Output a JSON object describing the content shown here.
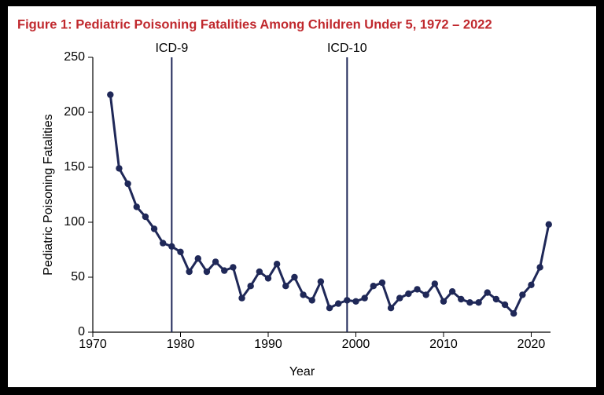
{
  "chart_data": {
    "type": "line",
    "title": "Figure 1: Pediatric Poisoning Fatalities Among Children Under 5, 1972 – 2022",
    "x_label": "Year",
    "y_label": "Pediatric Poisoning Fatalities",
    "x": [
      1972,
      1973,
      1974,
      1975,
      1976,
      1977,
      1978,
      1979,
      1980,
      1981,
      1982,
      1983,
      1984,
      1985,
      1986,
      1987,
      1988,
      1989,
      1990,
      1991,
      1992,
      1993,
      1994,
      1995,
      1996,
      1997,
      1998,
      1999,
      2000,
      2001,
      2002,
      2003,
      2004,
      2005,
      2006,
      2007,
      2008,
      2009,
      2010,
      2011,
      2012,
      2013,
      2014,
      2015,
      2016,
      2017,
      2018,
      2019,
      2020,
      2021,
      2022
    ],
    "values": [
      216,
      149,
      135,
      114,
      105,
      94,
      81,
      78,
      73,
      55,
      67,
      55,
      64,
      56,
      59,
      31,
      42,
      55,
      49,
      62,
      42,
      50,
      34,
      29,
      46,
      22,
      26,
      29,
      28,
      31,
      42,
      45,
      22,
      31,
      35,
      39,
      34,
      44,
      28,
      37,
      30,
      27,
      27,
      36,
      30,
      25,
      17,
      34,
      43,
      59,
      98
    ],
    "color": "#1f2858",
    "xlim": [
      1970,
      2022.2
    ],
    "xticks": [
      1970,
      1980,
      1990,
      2000,
      2010,
      2020
    ],
    "ylim": [
      0,
      250
    ],
    "yticks": [
      0,
      50,
      100,
      150,
      200,
      250
    ],
    "grid": false,
    "annotations": [
      {
        "x": 1979,
        "label": "ICD-9"
      },
      {
        "x": 1999,
        "label": "ICD-10"
      }
    ]
  }
}
